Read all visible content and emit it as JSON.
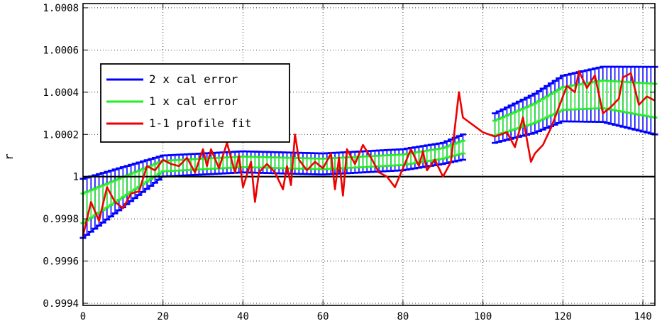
{
  "chart_data": {
    "type": "line",
    "title": "",
    "xlabel": "",
    "ylabel": "r",
    "xlim": [
      0,
      143
    ],
    "ylim": [
      0.99939,
      1.00082
    ],
    "xticks": [
      0,
      20,
      40,
      60,
      80,
      100,
      120,
      140
    ],
    "yticks": [
      0.9994,
      0.9996,
      0.9998,
      1,
      1.0002,
      1.0004,
      1.0006,
      1.0008
    ],
    "xtick_labels": [
      "0",
      "20",
      "40",
      "60",
      "80",
      "100",
      "120",
      "140"
    ],
    "ytick_labels": [
      "0.9994",
      "0.9996",
      "0.9998",
      "1",
      "1.0002",
      "1.0004",
      "1.0006",
      "1.0008"
    ],
    "grid": true,
    "legend_position": "upper-left",
    "reference_line": 1,
    "segments": [
      {
        "x_start": 0,
        "x_end": 95,
        "x_step": 1
      },
      {
        "x_start": 103,
        "x_end": 143,
        "x_step": 1
      }
    ],
    "center_line": {
      "x": [
        0,
        10,
        20,
        40,
        60,
        80,
        90,
        95,
        103,
        113,
        120,
        130,
        143
      ],
      "y": [
        0.99985,
        0.99995,
        1.00005,
        1.00007,
        1.00006,
        1.00008,
        1.00011,
        1.00014,
        1.00023,
        1.0003,
        1.00037,
        1.00039,
        1.00036
      ]
    },
    "series": [
      {
        "name": "2 x cal error",
        "color": "#0000ff",
        "halfwidth": {
          "x": [
            0,
            20,
            90,
            95,
            103,
            143
          ],
          "y": [
            0.00014,
            5e-05,
            5e-05,
            6e-05,
            7e-05,
            0.00016
          ]
        }
      },
      {
        "name": "1 x cal error",
        "color": "#22ee22",
        "halfwidth": {
          "x": [
            0,
            20,
            90,
            95,
            103,
            143
          ],
          "y": [
            7e-05,
            2.5e-05,
            2.5e-05,
            3e-05,
            3.5e-05,
            8e-05
          ]
        }
      },
      {
        "name": "1-1 profile fit",
        "color": "#ee0000",
        "x": [
          0,
          2,
          4,
          6,
          8,
          10,
          12,
          14,
          16,
          18,
          20,
          22,
          24,
          26,
          28,
          30,
          31,
          32,
          34,
          36,
          38,
          39,
          40,
          42,
          43,
          44,
          46,
          48,
          50,
          51,
          52,
          53,
          54,
          56,
          58,
          60,
          62,
          63,
          64,
          65,
          66,
          68,
          70,
          72,
          74,
          76,
          78,
          80,
          82,
          84,
          85,
          86,
          88,
          90,
          92,
          94,
          95,
          100,
          103,
          106,
          108,
          110,
          112,
          113,
          115,
          117,
          119,
          121,
          123,
          124,
          126,
          128,
          130,
          132,
          134,
          135,
          137,
          139,
          141,
          143
        ],
        "y": [
          0.99972,
          0.99988,
          0.99979,
          0.99995,
          0.99988,
          0.99985,
          0.99992,
          0.99993,
          1.00005,
          1.00003,
          1.00008,
          1.00006,
          1.00005,
          1.00009,
          1.00002,
          1.00013,
          1.00005,
          1.00013,
          1.00004,
          1.00016,
          1.00002,
          1.0001,
          0.99995,
          1.00007,
          0.99988,
          1.00002,
          1.00006,
          1.00002,
          0.99994,
          1.00005,
          0.99996,
          1.0002,
          1.00008,
          1.00003,
          1.00007,
          1.00004,
          1.00011,
          0.99994,
          1.00009,
          0.99991,
          1.00013,
          1.00006,
          1.00015,
          1.00009,
          1.00002,
          1.0,
          0.99995,
          1.00004,
          1.00013,
          1.00005,
          1.00012,
          1.00003,
          1.00008,
          1.0,
          1.00007,
          1.0004,
          1.00028,
          1.00021,
          1.00019,
          1.00021,
          1.00014,
          1.00028,
          1.00007,
          1.00011,
          1.00015,
          1.00023,
          1.00033,
          1.00043,
          1.0004,
          1.0005,
          1.00042,
          1.00048,
          1.0003,
          1.00033,
          1.00037,
          1.00047,
          1.00049,
          1.00034,
          1.00038,
          1.00036
        ]
      }
    ]
  }
}
